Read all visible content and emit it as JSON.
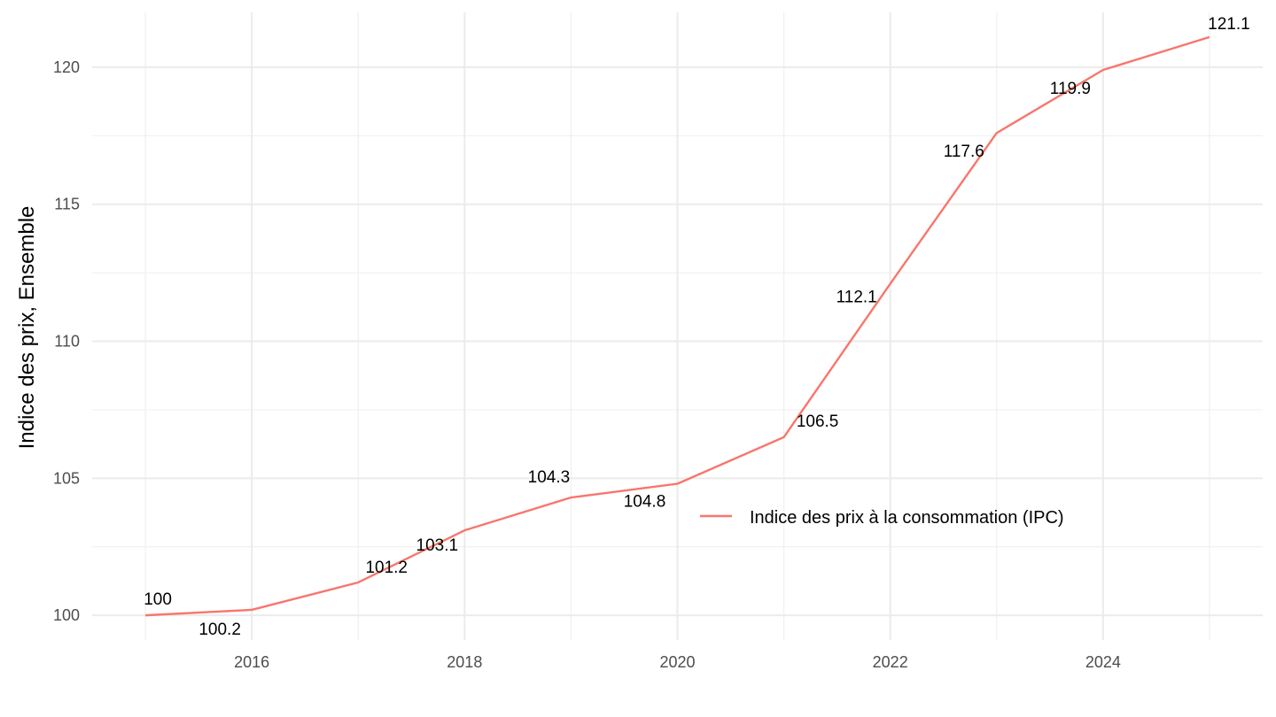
{
  "chart_data": {
    "type": "line",
    "title": "",
    "xlabel": "",
    "ylabel": "Indice des prix, Ensemble",
    "x": [
      2015,
      2016,
      2017,
      2018,
      2019,
      2020,
      2021,
      2022,
      2023,
      2024,
      2025
    ],
    "series": [
      {
        "name": "Indice des prix à la consommation (IPC)",
        "color": "#F8766D",
        "values": [
          100,
          100.2,
          101.2,
          103.1,
          104.3,
          104.8,
          106.5,
          112.1,
          117.6,
          119.9,
          121.1
        ],
        "labels": [
          "100",
          "100.2",
          "101.2",
          "103.1",
          "104.3",
          "104.8",
          "106.5",
          "112.1",
          "117.6",
          "119.9",
          "121.1"
        ]
      }
    ],
    "x_ticks": [
      2016,
      2018,
      2020,
      2022,
      2024
    ],
    "x_tick_labels": [
      "2016",
      "2018",
      "2020",
      "2022",
      "2024"
    ],
    "y_ticks": [
      100,
      105,
      110,
      115,
      120
    ],
    "y_tick_labels": [
      "100",
      "105",
      "110",
      "115",
      "120"
    ],
    "xlim": [
      2014.5,
      2025.5
    ],
    "ylim": [
      99.1,
      122.0
    ],
    "grid": true,
    "legend_position": "inside-bottom-right"
  }
}
